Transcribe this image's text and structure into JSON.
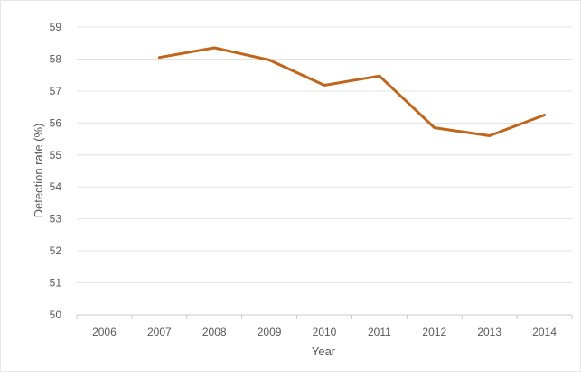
{
  "chart_data": {
    "type": "line",
    "title": "",
    "xlabel": "Year",
    "ylabel": "Detection rate (%)",
    "categories": [
      "2006",
      "2007",
      "2008",
      "2009",
      "2010",
      "2011",
      "2012",
      "2013",
      "2014"
    ],
    "series": [
      {
        "values": [
          null,
          58.05,
          58.35,
          57.97,
          57.18,
          57.47,
          55.85,
          55.6,
          56.25
        ],
        "color": "#c0651a"
      }
    ],
    "y_ticks": [
      "50",
      "51",
      "52",
      "53",
      "54",
      "55",
      "56",
      "57",
      "58",
      "59"
    ],
    "ylim": [
      50,
      59
    ],
    "grid": true,
    "legend": "none"
  }
}
